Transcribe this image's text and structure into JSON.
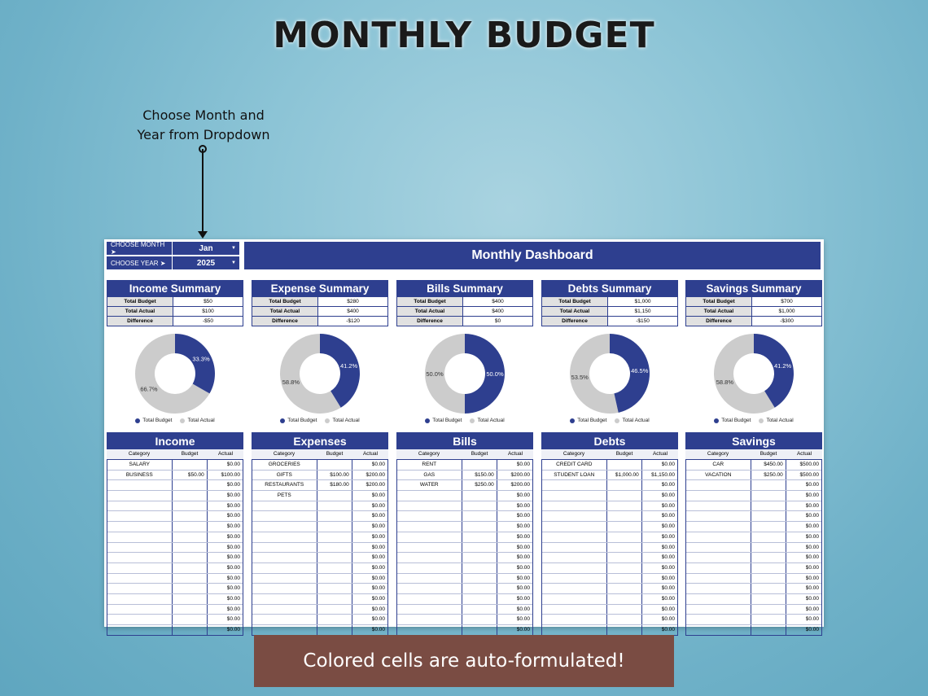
{
  "title": "MONTHLY BUDGET",
  "annotation": {
    "line1": "Choose Month and",
    "line2": "Year from Dropdown"
  },
  "selectors": {
    "month": {
      "label": "CHOOSE MONTH  ➤",
      "value": "Jan"
    },
    "year": {
      "label": "CHOOSE YEAR  ➤",
      "value": "2025"
    }
  },
  "dashboard_title": "Monthly Dashboard",
  "colors": {
    "accent": "#2e3f8f",
    "gray": "#cccccc",
    "banner": "#7a4c43"
  },
  "summary_keys": [
    "Total Budget",
    "Total Actual",
    "Difference"
  ],
  "legend": {
    "budget": "Total Budget",
    "actual": "Total Actual"
  },
  "summaries": [
    {
      "title": "Income Summary",
      "values": [
        "$50",
        "$100",
        "-$50"
      ],
      "budget_pct": "33.3%",
      "actual_pct": "66.7%",
      "budget_frac": 0.333
    },
    {
      "title": "Expense Summary",
      "values": [
        "$280",
        "$400",
        "-$120"
      ],
      "budget_pct": "41.2%",
      "actual_pct": "58.8%",
      "budget_frac": 0.412
    },
    {
      "title": "Bills Summary",
      "values": [
        "$400",
        "$400",
        "$0"
      ],
      "budget_pct": "50.0%",
      "actual_pct": "50.0%",
      "budget_frac": 0.5
    },
    {
      "title": "Debts Summary",
      "values": [
        "$1,000",
        "$1,150",
        "-$150"
      ],
      "budget_pct": "46.5%",
      "actual_pct": "53.5%",
      "budget_frac": 0.465
    },
    {
      "title": "Savings Summary",
      "values": [
        "$700",
        "$1,000",
        "-$300"
      ],
      "budget_pct": "41.2%",
      "actual_pct": "58.8%",
      "budget_frac": 0.412
    }
  ],
  "table_headers": [
    "Category",
    "Budget",
    "Actual"
  ],
  "tables": [
    {
      "title": "Income",
      "rows": [
        [
          "SALARY",
          "",
          "$0.00"
        ],
        [
          "BUSINESS",
          "$50.00",
          "$100.00"
        ]
      ]
    },
    {
      "title": "Expenses",
      "rows": [
        [
          "GROCERIES",
          "",
          "$0.00"
        ],
        [
          "GIFTS",
          "$100.00",
          "$200.00"
        ],
        [
          "RESTAURANTS",
          "$180.00",
          "$200.00"
        ],
        [
          "PETS",
          "",
          "$0.00"
        ]
      ]
    },
    {
      "title": "Bills",
      "rows": [
        [
          "RENT",
          "",
          "$0.00"
        ],
        [
          "GAS",
          "$150.00",
          "$200.00"
        ],
        [
          "WATER",
          "$250.00",
          "$200.00"
        ]
      ]
    },
    {
      "title": "Debts",
      "rows": [
        [
          "CREDIT CARD",
          "",
          "$0.00"
        ],
        [
          "STUDENT LOAN",
          "$1,000.00",
          "$1,150.00"
        ]
      ]
    },
    {
      "title": "Savings",
      "rows": [
        [
          "CAR",
          "$450.00",
          "$500.00"
        ],
        [
          "VACATION",
          "$250.00",
          "$500.00"
        ]
      ]
    }
  ],
  "empty_actual": "$0.00",
  "rows_per_table": 17,
  "banner": "Colored cells are auto-formulated!"
}
